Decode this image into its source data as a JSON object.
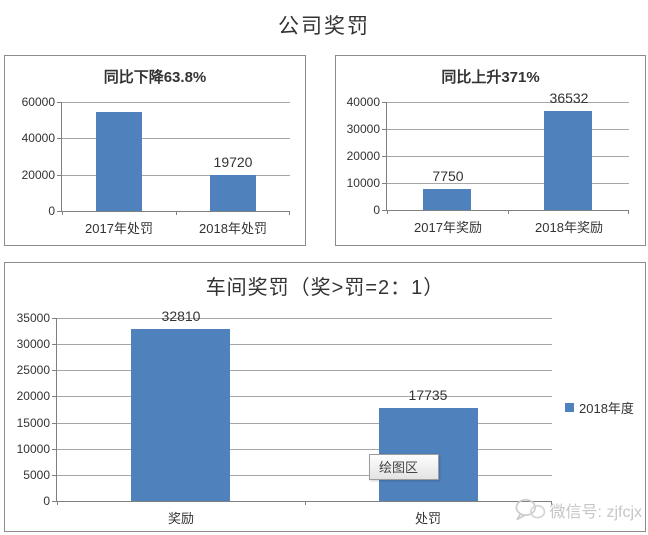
{
  "page_title": "公司奖罚",
  "tooltip": {
    "label": "绘图区"
  },
  "watermark": {
    "text": "微信号: zjfcjx"
  },
  "colors": {
    "bar": "#4f81bd",
    "grid": "#a6a6a6",
    "axis": "#808080",
    "panel_border": "#8c8c8c"
  },
  "chart_data": [
    {
      "type": "bar",
      "title": "同比下降63.8%",
      "categories": [
        "2017年处罚",
        "2018年处罚"
      ],
      "values": [
        54475,
        19720
      ],
      "data_labels": [
        null,
        "19720"
      ],
      "ylim": [
        0,
        60000
      ],
      "yticks": [
        "60000",
        "40000",
        "20000",
        "0"
      ],
      "grid": true,
      "legend": null
    },
    {
      "type": "bar",
      "title": "同比上升371%",
      "categories": [
        "2017年奖励",
        "2018年奖励"
      ],
      "values": [
        7750,
        36532
      ],
      "data_labels": [
        "7750",
        "36532"
      ],
      "ylim": [
        0,
        40000
      ],
      "yticks": [
        "40000",
        "30000",
        "20000",
        "10000",
        "0"
      ],
      "grid": true,
      "legend": null
    },
    {
      "type": "bar",
      "title": "车间奖罚（奖>罚=2：1）",
      "categories": [
        "奖励",
        "处罚"
      ],
      "values": [
        32810,
        17735
      ],
      "data_labels": [
        "32810",
        "17735"
      ],
      "ylim": [
        0,
        35000
      ],
      "yticks": [
        "35000",
        "30000",
        "25000",
        "20000",
        "15000",
        "10000",
        "5000",
        "0"
      ],
      "grid": true,
      "legend": [
        "2018年度"
      ],
      "legend_position": "right"
    }
  ]
}
